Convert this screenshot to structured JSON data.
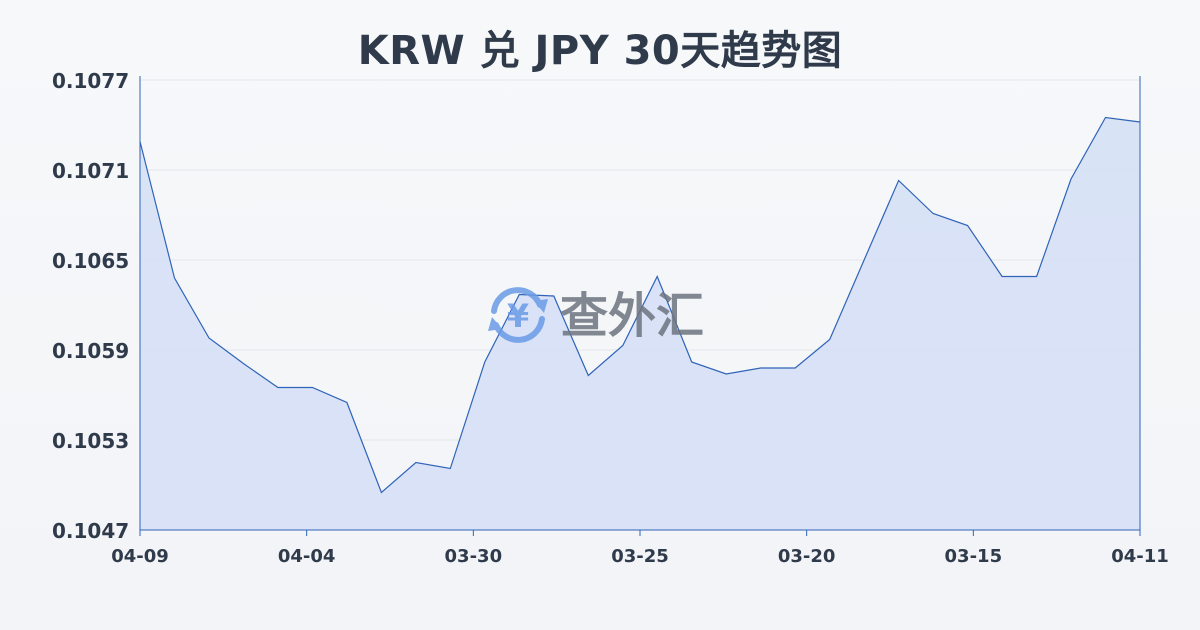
{
  "chart_data": {
    "type": "area",
    "title": "KRW 兑 JPY 30天趋势图",
    "xlabel": "",
    "ylabel": "",
    "x_ticks": [
      "04-09",
      "04-04",
      "03-30",
      "03-25",
      "03-20",
      "03-15",
      "04-11"
    ],
    "y_ticks": [
      "0.1077",
      "0.1071",
      "0.1065",
      "0.1059",
      "0.1053",
      "0.1047"
    ],
    "ylim": [
      0.1047,
      0.1077
    ],
    "grid": true,
    "legend": "none",
    "series": [
      {
        "values": [
          0.10729,
          0.10638,
          0.10598,
          0.10581,
          0.10565,
          0.10565,
          0.10555,
          0.10495,
          0.10515,
          0.10511,
          0.10582,
          0.10627,
          0.10626,
          0.10573,
          0.10593,
          0.10639,
          0.10582,
          0.10574,
          0.10578,
          0.10578,
          0.10597,
          0.1065,
          0.10703,
          0.10681,
          0.10673,
          0.10639,
          0.10639,
          0.10704,
          0.10745,
          0.10742
        ]
      }
    ],
    "colors": {
      "line": "#2f64b8",
      "fill": "#d6e0f5",
      "grid": "#e3e6ea",
      "text": "#2f3a4a"
    }
  },
  "watermark": {
    "text": "查外汇",
    "icon": "yen-exchange-icon",
    "icon_glyph": "¥",
    "color": "#6a9be6"
  }
}
